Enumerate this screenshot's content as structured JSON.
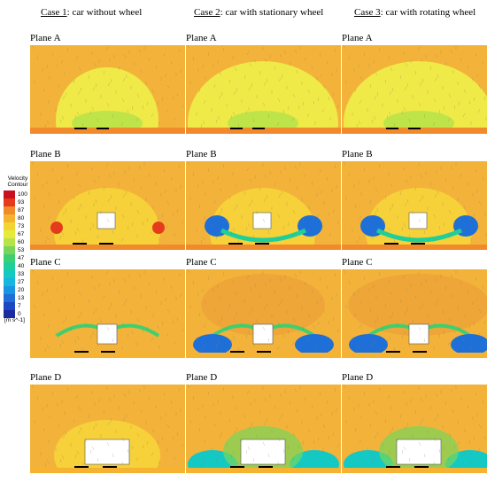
{
  "cases": [
    {
      "id": "Case 1",
      "description": ": car without wheel"
    },
    {
      "id": "Case 2",
      "description": ": car with stationary wheel"
    },
    {
      "id": "Case 3",
      "description": ": car with rotating wheel"
    }
  ],
  "planes": [
    "Plane A",
    "Plane B",
    "Plane C",
    "Plane D"
  ],
  "legend": {
    "title_line1": "Velocity",
    "title_line2": "Contour",
    "unit": "[m s^-1]",
    "levels": [
      {
        "value": "100",
        "color": "#c8101e"
      },
      {
        "value": "93",
        "color": "#e53b1c"
      },
      {
        "value": "87",
        "color": "#f08a2a"
      },
      {
        "value": "80",
        "color": "#f6b331"
      },
      {
        "value": "73",
        "color": "#f2d533"
      },
      {
        "value": "67",
        "color": "#e6ea3a"
      },
      {
        "value": "60",
        "color": "#b6e34a"
      },
      {
        "value": "53",
        "color": "#78d55a"
      },
      {
        "value": "47",
        "color": "#3fcf70"
      },
      {
        "value": "40",
        "color": "#1fcf9a"
      },
      {
        "value": "33",
        "color": "#14c9c4"
      },
      {
        "value": "27",
        "color": "#17b6df"
      },
      {
        "value": "20",
        "color": "#1a95e2"
      },
      {
        "value": "13",
        "color": "#1f6fd8"
      },
      {
        "value": "7",
        "color": "#1c48c2"
      },
      {
        "value": "0",
        "color": "#1b2aa0"
      }
    ]
  },
  "colors": {
    "background_field": "#f3b33a",
    "mid_field": "#f6d83a",
    "light_field": "#eef04a",
    "low_velocity": "#1a95e2",
    "white_car": "#ffffff"
  }
}
